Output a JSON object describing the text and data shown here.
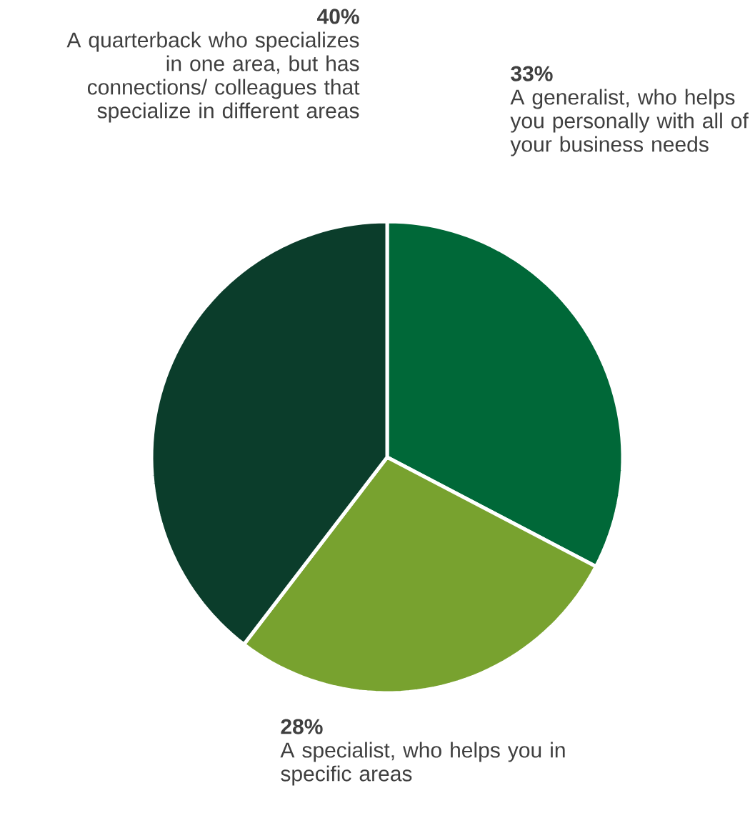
{
  "chart_data": {
    "type": "pie",
    "categories": [
      "A generalist, who helps you personally with all of your business needs",
      "A specialist, who helps you in specific areas",
      "A quarterback who specializes in one area, but has connections/ colleagues that specialize in different areas"
    ],
    "values": [
      33,
      28,
      40
    ],
    "value_labels": [
      "33%",
      "28%",
      "40%"
    ],
    "colors": [
      "#006838",
      "#78a22f",
      "#0b3d2b"
    ]
  }
}
